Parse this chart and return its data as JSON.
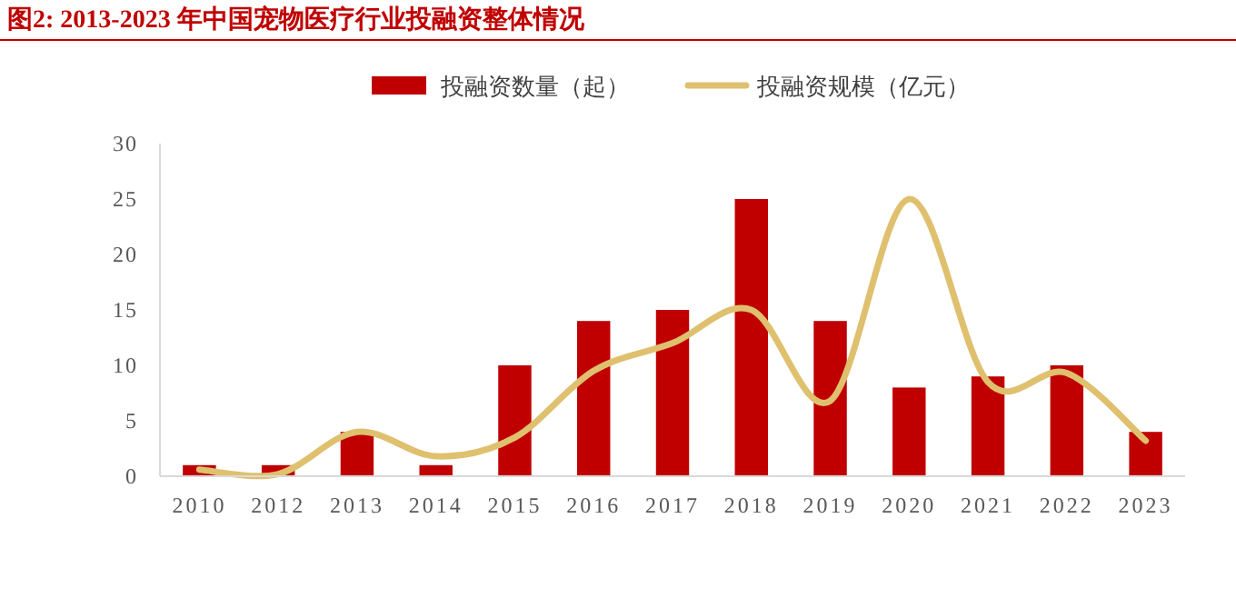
{
  "chart_data": {
    "type": "bar",
    "title": "图2:   2013-2023 年中国宠物医疗行业投融资整体情况",
    "categories": [
      "2010",
      "2012",
      "2013",
      "2014",
      "2015",
      "2016",
      "2017",
      "2018",
      "2019",
      "2020",
      "2021",
      "2022",
      "2023"
    ],
    "series": [
      {
        "name": "投融资数量（起）",
        "color": "#c00000",
        "values": [
          1,
          1,
          4,
          1,
          10,
          14,
          15,
          25,
          14,
          8,
          9,
          10,
          4
        ]
      },
      {
        "name": "投融资规模（亿元）",
        "type": "line",
        "color": "#dfc06e",
        "values": [
          0.6,
          0.2,
          4,
          1.8,
          3.5,
          9.5,
          12,
          15,
          6.8,
          25,
          8.5,
          9.3,
          3.2
        ]
      }
    ],
    "ylim": [
      0,
      30
    ],
    "yticks": [
      0,
      5,
      10,
      15,
      20,
      25,
      30
    ],
    "legend": "top",
    "grid": false
  }
}
